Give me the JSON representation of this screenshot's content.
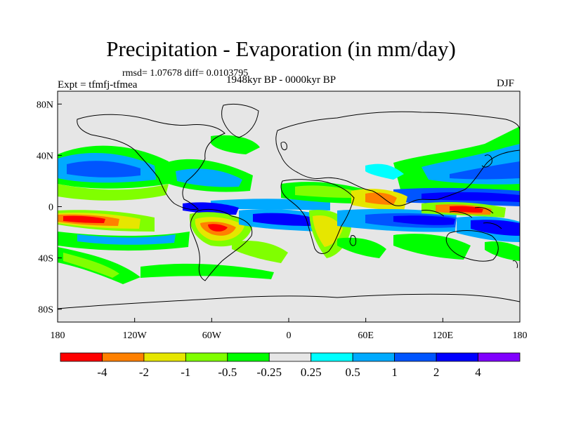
{
  "header": {
    "title": "Precipitation - Evaporation (in mm/day)",
    "stats": "rmsd= 1.07678 diff= 0.0103795",
    "experiment": "Expt = tfmfj-tfmea",
    "period": "1948kyr BP - 0000kyr BP",
    "season": "DJF"
  },
  "axes": {
    "x_ticks": [
      "180",
      "120W",
      "60W",
      "0",
      "60E",
      "120E",
      "180"
    ],
    "y_ticks": [
      "80N",
      "40N",
      "0",
      "40S",
      "80S"
    ],
    "lon_range": [
      -180,
      180
    ],
    "lat_range": [
      -90,
      90
    ]
  },
  "colorbar": {
    "labels": [
      "-4",
      "-2",
      "-1",
      "-0.5",
      "-0.25",
      "0.25",
      "0.5",
      "1",
      "2",
      "4"
    ],
    "colors": [
      "#ff0000",
      "#ff8000",
      "#e6e600",
      "#80ff00",
      "#00ff00",
      "#e6e6e6",
      "#00ffff",
      "#00aaff",
      "#0055ff",
      "#0000ff",
      "#8000ff"
    ]
  },
  "colors": {
    "background": "#e6e6e6",
    "coastline": "#000000"
  }
}
